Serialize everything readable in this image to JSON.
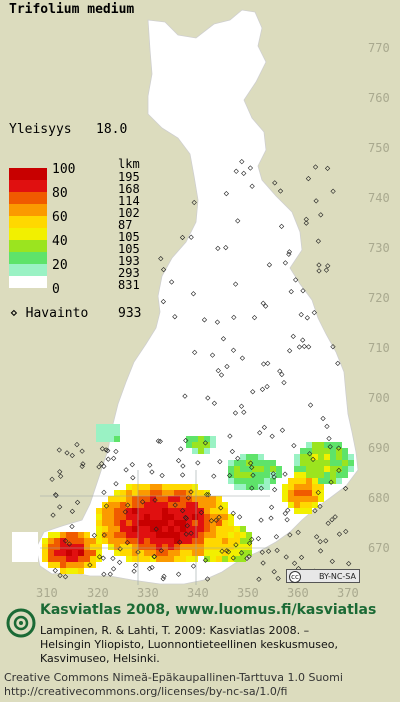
{
  "title": "Trifolium medium",
  "yleisyys_label": "Yleisyys",
  "yleisyys_value": "18.0",
  "legend": {
    "lkm_header": "lkm",
    "percent_labels": [
      "100",
      "80",
      "60",
      "40",
      "20",
      "0"
    ],
    "bins": [
      {
        "color": "#c80000",
        "count": "195"
      },
      {
        "color": "#e01010",
        "count": "168"
      },
      {
        "color": "#f05a00",
        "count": "114"
      },
      {
        "color": "#fb9a00",
        "count": "102"
      },
      {
        "color": "#ffd800",
        "count": "87"
      },
      {
        "color": "#f2f000",
        "count": "105"
      },
      {
        "color": "#9be41f",
        "count": "105"
      },
      {
        "color": "#5ee36a",
        "count": "193"
      },
      {
        "color": "#9af2c4",
        "count": "293"
      },
      {
        "color": "#ffffff",
        "count": "831"
      }
    ]
  },
  "havainto": {
    "label": "⋄ Havainto",
    "value": "933"
  },
  "y_axis_labels": [
    "770",
    "760",
    "750",
    "740",
    "730",
    "720",
    "710",
    "700",
    "690",
    "680",
    "670"
  ],
  "x_axis_labels": [
    "310",
    "320",
    "330",
    "340",
    "350",
    "360",
    "370"
  ],
  "cc_badge": "BY-NC-SA",
  "footer": {
    "kv_title": "Kasviatlas 2008, www.luomus.fi/kasviatlas",
    "citation_lines": [
      "Lampinen, R. & Lahti, T. 2009: Kasviatlas 2008. –",
      "Helsingin Yliopisto, Luonnontieteellinen keskusmuseo,",
      "Kasvimuseo, Helsinki."
    ],
    "license_lines": [
      "Creative Commons Nimeä-Epäkaupallinen-Tarttuva 1.0 Suomi",
      "http://creativecommons.org/licenses/by-nc-sa/1.0/fi"
    ]
  },
  "colors": {
    "background": "#dcdcbe",
    "land": "#ffffff",
    "axis_label": "#a9a98f",
    "footer_title": "#1b6a35"
  }
}
